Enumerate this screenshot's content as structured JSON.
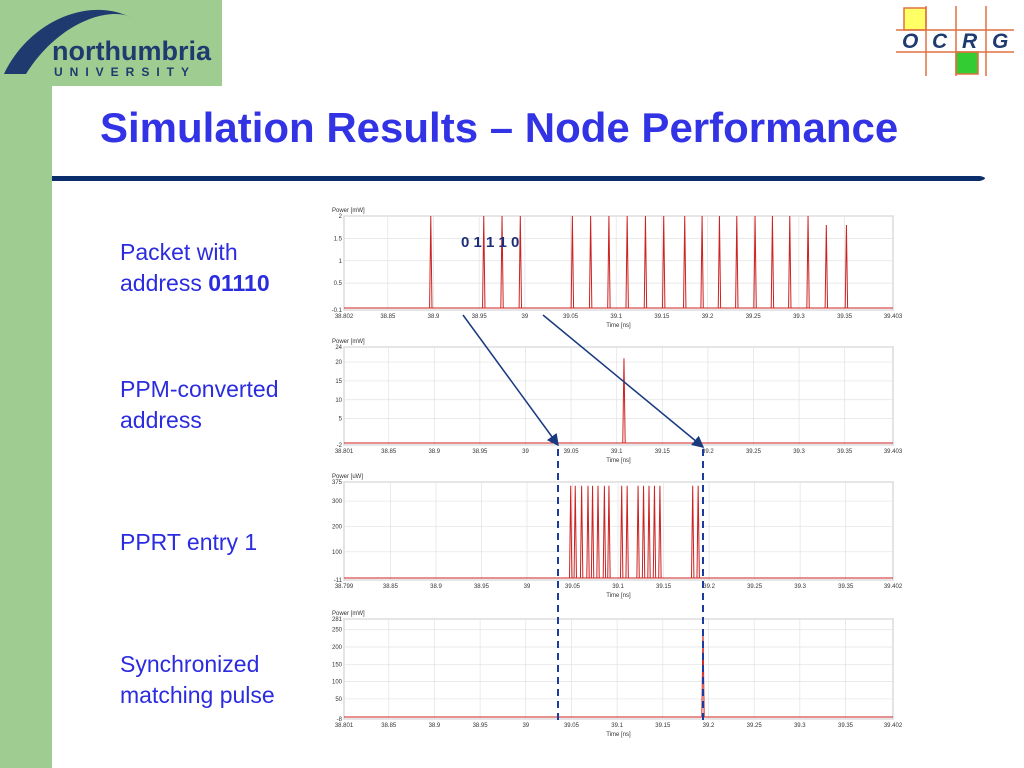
{
  "header": {
    "university_name": "northumbria",
    "university_sub": "UNIVERSITY",
    "group_letters": [
      "O",
      "C",
      "R",
      "G"
    ]
  },
  "title": "Simulation Results – Node Performance",
  "labels": {
    "packet_line1": "Packet with",
    "packet_line2_prefix": "address ",
    "packet_line2_bold": "01110",
    "ppm_line1": "PPM-converted",
    "ppm_line2": "address",
    "pprt": "PPRT entry 1",
    "sync_line1": "Synchronized",
    "sync_line2": "matching pulse"
  },
  "colors": {
    "accent_green": "#9ecc91",
    "title_blue": "#3333e6",
    "rule_navy": "#0b2d6b",
    "pulse_red": "#cc2222",
    "arrow_navy": "#1a3a80",
    "dash_blue": "#1c3aa0"
  },
  "bit_annotation": "0 1 1 1 0",
  "chart_data": [
    {
      "type": "line",
      "ylabel": "Power [mW]",
      "xlabel": "Time [ns]",
      "xlim": [
        38.802,
        39.403
      ],
      "ylim": [
        -0.1,
        2
      ],
      "y_ticks": [
        "2",
        "1.5",
        "1",
        "0.5",
        "-0.1"
      ],
      "y_tick_values": [
        2,
        1.5,
        1,
        0.5,
        -0.1
      ],
      "x_ticks": [
        "38.802",
        "38.85",
        "38.9",
        "38.95",
        "39",
        "39.05",
        "39.1",
        "39.15",
        "39.2",
        "39.25",
        "39.3",
        "39.35",
        "39.403"
      ],
      "x_tick_values": [
        38.802,
        38.85,
        38.9,
        38.95,
        39,
        39.05,
        39.1,
        39.15,
        39.2,
        39.25,
        39.3,
        39.35,
        39.403
      ],
      "pulses": [
        {
          "x": 38.897,
          "y": 2
        },
        {
          "x": 38.955,
          "y": 2
        },
        {
          "x": 38.975,
          "y": 2
        },
        {
          "x": 38.995,
          "y": 2
        },
        {
          "x": 39.052,
          "y": 2
        },
        {
          "x": 39.072,
          "y": 2
        },
        {
          "x": 39.092,
          "y": 2
        },
        {
          "x": 39.112,
          "y": 2
        },
        {
          "x": 39.132,
          "y": 2
        },
        {
          "x": 39.152,
          "y": 2
        },
        {
          "x": 39.175,
          "y": 2
        },
        {
          "x": 39.194,
          "y": 2
        },
        {
          "x": 39.213,
          "y": 2
        },
        {
          "x": 39.232,
          "y": 2
        },
        {
          "x": 39.252,
          "y": 2
        },
        {
          "x": 39.271,
          "y": 2
        },
        {
          "x": 39.29,
          "y": 2
        },
        {
          "x": 39.31,
          "y": 2
        },
        {
          "x": 39.33,
          "y": 1.8
        },
        {
          "x": 39.352,
          "y": 1.8
        }
      ]
    },
    {
      "type": "line",
      "ylabel": "Power [mW]",
      "xlabel": "Time [ns]",
      "xlim": [
        38.801,
        39.403
      ],
      "ylim": [
        -2,
        24
      ],
      "y_ticks": [
        "24",
        "20",
        "15",
        "10",
        "5",
        "-2"
      ],
      "y_tick_values": [
        24,
        20,
        15,
        10,
        5,
        -2
      ],
      "x_ticks": [
        "38.801",
        "38.85",
        "38.9",
        "38.95",
        "39",
        "39.05",
        "39.1",
        "39.15",
        "39.2",
        "39.25",
        "39.3",
        "39.35",
        "39.403"
      ],
      "x_tick_values": [
        38.801,
        38.85,
        38.9,
        38.95,
        39,
        39.05,
        39.1,
        39.15,
        39.2,
        39.25,
        39.3,
        39.35,
        39.403
      ],
      "pulses": [
        {
          "x": 39.108,
          "y": 21
        }
      ]
    },
    {
      "type": "line",
      "ylabel": "Power [uW]",
      "xlabel": "Time [ns]",
      "xlim": [
        38.799,
        39.402
      ],
      "ylim": [
        -11,
        375
      ],
      "y_ticks": [
        "375",
        "300",
        "200",
        "100",
        "-11"
      ],
      "y_tick_values": [
        375,
        300,
        200,
        100,
        -11
      ],
      "x_ticks": [
        "38.799",
        "38.85",
        "38.9",
        "38.95",
        "39",
        "39.05",
        "39.1",
        "39.15",
        "39.2",
        "39.25",
        "39.3",
        "39.35",
        "39.402"
      ],
      "x_tick_values": [
        38.799,
        38.85,
        38.9,
        38.95,
        39,
        39.05,
        39.1,
        39.15,
        39.2,
        39.25,
        39.3,
        39.35,
        39.402
      ],
      "pulses": [
        {
          "x": 39.048,
          "y": 360
        },
        {
          "x": 39.053,
          "y": 360
        },
        {
          "x": 39.06,
          "y": 360
        },
        {
          "x": 39.067,
          "y": 360
        },
        {
          "x": 39.072,
          "y": 360
        },
        {
          "x": 39.078,
          "y": 360
        },
        {
          "x": 39.085,
          "y": 360
        },
        {
          "x": 39.09,
          "y": 360
        },
        {
          "x": 39.104,
          "y": 360
        },
        {
          "x": 39.11,
          "y": 360
        },
        {
          "x": 39.122,
          "y": 360
        },
        {
          "x": 39.128,
          "y": 360
        },
        {
          "x": 39.134,
          "y": 360
        },
        {
          "x": 39.14,
          "y": 360
        },
        {
          "x": 39.146,
          "y": 360
        },
        {
          "x": 39.182,
          "y": 360
        },
        {
          "x": 39.188,
          "y": 360
        }
      ]
    },
    {
      "type": "line",
      "ylabel": "Power [mW]",
      "xlabel": "Time [ns]",
      "xlim": [
        38.801,
        39.402
      ],
      "ylim": [
        -8,
        281
      ],
      "y_ticks": [
        "281",
        "250",
        "200",
        "150",
        "100",
        "50",
        "-8"
      ],
      "y_tick_values": [
        281,
        250,
        200,
        150,
        100,
        50,
        -8
      ],
      "x_ticks": [
        "38.801",
        "38.85",
        "38.9",
        "38.95",
        "39",
        "39.05",
        "39.1",
        "39.15",
        "39.2",
        "39.25",
        "39.3",
        "39.35",
        "39.402"
      ],
      "x_tick_values": [
        38.801,
        38.85,
        38.9,
        38.95,
        39,
        39.05,
        39.1,
        39.15,
        39.2,
        39.25,
        39.3,
        39.35,
        39.402
      ],
      "pulses": [
        {
          "x": 39.194,
          "y": 250
        }
      ]
    }
  ]
}
